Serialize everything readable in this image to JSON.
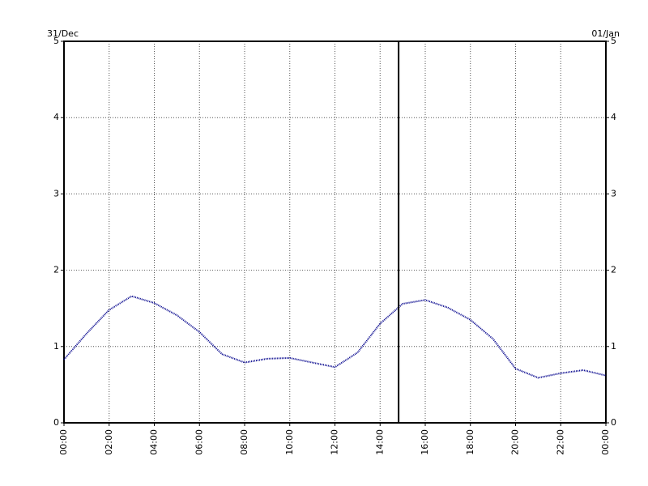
{
  "chart_data": {
    "type": "line",
    "corner_labels": [
      "31/Dec",
      "01/Jan"
    ],
    "x": [
      0,
      1,
      2,
      3,
      4,
      5,
      6,
      7,
      8,
      9,
      10,
      11,
      12,
      13,
      14,
      15,
      16,
      17,
      18,
      19,
      20,
      21,
      22,
      23,
      24
    ],
    "values": [
      0.83,
      1.17,
      1.48,
      1.66,
      1.57,
      1.41,
      1.19,
      0.9,
      0.79,
      0.84,
      0.85,
      0.79,
      0.73,
      0.92,
      1.3,
      1.56,
      1.61,
      1.51,
      1.35,
      1.1,
      0.71,
      0.59,
      0.65,
      0.69,
      0.62
    ],
    "color": "#00008b",
    "xlim": [
      0,
      24
    ],
    "xticks": [
      {
        "value": 0,
        "label": "00:00"
      },
      {
        "value": 2,
        "label": "02:00"
      },
      {
        "value": 4,
        "label": "04:00"
      },
      {
        "value": 6,
        "label": "06:00"
      },
      {
        "value": 8,
        "label": "08:00"
      },
      {
        "value": 10,
        "label": "10:00"
      },
      {
        "value": 12,
        "label": "12:00"
      },
      {
        "value": 14,
        "label": "14:00"
      },
      {
        "value": 16,
        "label": "16:00"
      },
      {
        "value": 18,
        "label": "18:00"
      },
      {
        "value": 20,
        "label": "20:00"
      },
      {
        "value": 22,
        "label": "22:00"
      },
      {
        "value": 24,
        "label": "00:00"
      }
    ],
    "ylim": [
      0,
      5
    ],
    "yticks": [
      0,
      1,
      2,
      3,
      4,
      5
    ],
    "grid": true,
    "marker_x": 14.82
  }
}
